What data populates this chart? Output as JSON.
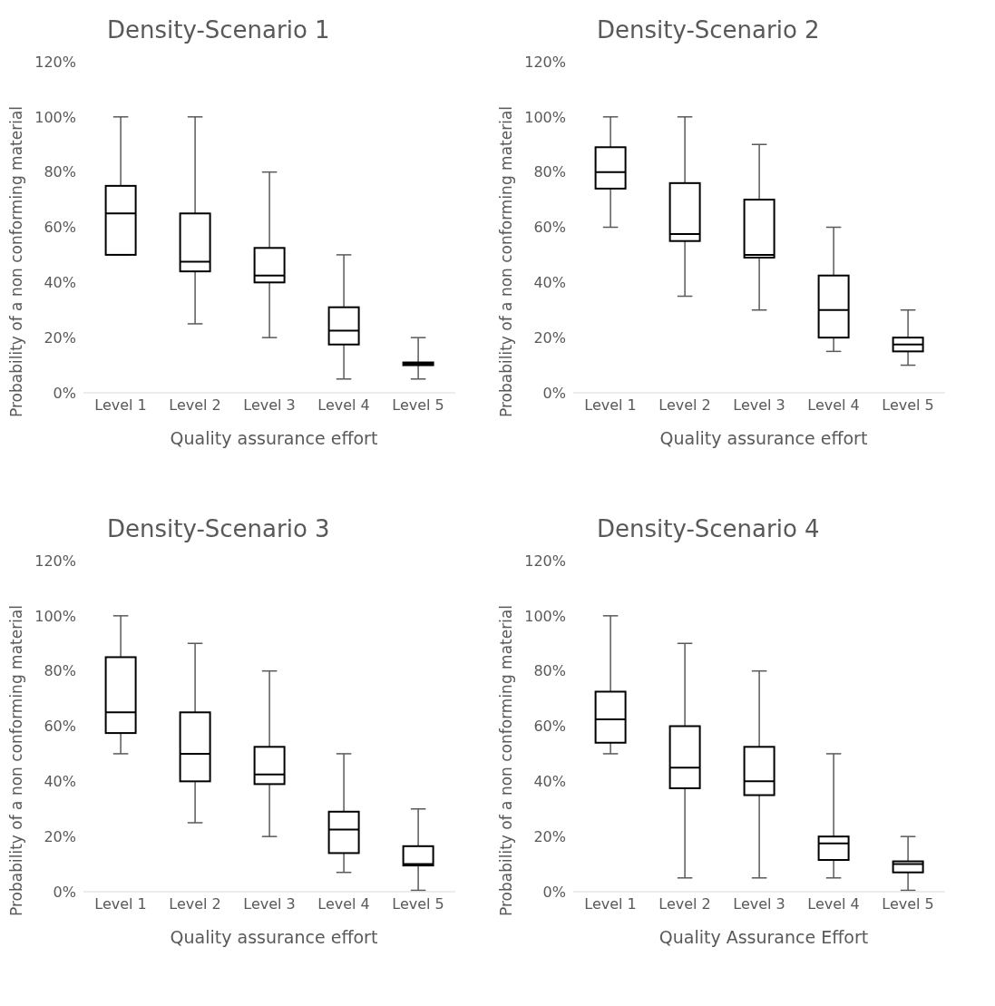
{
  "chart_data": [
    {
      "type": "box",
      "title": "Density-Scenario 1",
      "xlabel": "Quality assurance effort",
      "ylabel": "Probability of a non conforming material",
      "categories": [
        "Level 1",
        "Level 2",
        "Level 3",
        "Level 4",
        "Level 5"
      ],
      "ylim": [
        0,
        120
      ],
      "yticks": [
        {
          "value": 0,
          "label": "0%"
        },
        {
          "value": 20,
          "label": "20%"
        },
        {
          "value": 40,
          "label": "40%"
        },
        {
          "value": 60,
          "label": "60%"
        },
        {
          "value": 80,
          "label": "80%"
        },
        {
          "value": 100,
          "label": "100%"
        },
        {
          "value": 120,
          "label": "120%"
        }
      ],
      "grid": false,
      "legend": false,
      "boxes": [
        {
          "low": 50,
          "q1": 50,
          "median": 65,
          "q3": 75,
          "high": 100
        },
        {
          "low": 25,
          "q1": 44,
          "median": 47.5,
          "q3": 65,
          "high": 100
        },
        {
          "low": 20,
          "q1": 40,
          "median": 42.5,
          "q3": 52.5,
          "high": 80
        },
        {
          "low": 5,
          "q1": 17.5,
          "median": 22.5,
          "q3": 31,
          "high": 50
        },
        {
          "low": 5,
          "q1": 10,
          "median": 10.5,
          "q3": 11,
          "high": 20
        }
      ]
    },
    {
      "type": "box",
      "title": "Density-Scenario 2",
      "xlabel": "Quality assurance effort",
      "ylabel": "Probability of a non conforming material",
      "categories": [
        "Level 1",
        "Level 2",
        "Level 3",
        "Level 4",
        "Level 5"
      ],
      "ylim": [
        0,
        120
      ],
      "yticks": [
        {
          "value": 0,
          "label": "0%"
        },
        {
          "value": 20,
          "label": "20%"
        },
        {
          "value": 40,
          "label": "40%"
        },
        {
          "value": 60,
          "label": "60%"
        },
        {
          "value": 80,
          "label": "80%"
        },
        {
          "value": 100,
          "label": "100%"
        },
        {
          "value": 120,
          "label": "120%"
        }
      ],
      "grid": false,
      "legend": false,
      "boxes": [
        {
          "low": 60,
          "q1": 74,
          "median": 80,
          "q3": 89,
          "high": 100
        },
        {
          "low": 35,
          "q1": 55,
          "median": 57.5,
          "q3": 76,
          "high": 100
        },
        {
          "low": 30,
          "q1": 49,
          "median": 50,
          "q3": 70,
          "high": 90
        },
        {
          "low": 15,
          "q1": 20,
          "median": 30,
          "q3": 42.5,
          "high": 60
        },
        {
          "low": 10,
          "q1": 15,
          "median": 17.5,
          "q3": 20,
          "high": 30
        }
      ]
    },
    {
      "type": "box",
      "title": "Density-Scenario 3",
      "xlabel": "Quality assurance effort",
      "ylabel": "Probability of a non conforming material",
      "categories": [
        "Level 1",
        "Level 2",
        "Level 3",
        "Level 4",
        "Level 5"
      ],
      "ylim": [
        0,
        120
      ],
      "yticks": [
        {
          "value": 0,
          "label": "0%"
        },
        {
          "value": 20,
          "label": "20%"
        },
        {
          "value": 40,
          "label": "40%"
        },
        {
          "value": 60,
          "label": "60%"
        },
        {
          "value": 80,
          "label": "80%"
        },
        {
          "value": 100,
          "label": "100%"
        },
        {
          "value": 120,
          "label": "120%"
        }
      ],
      "grid": false,
      "legend": false,
      "boxes": [
        {
          "low": 50,
          "q1": 57.5,
          "median": 65,
          "q3": 85,
          "high": 100
        },
        {
          "low": 25,
          "q1": 40,
          "median": 50,
          "q3": 65,
          "high": 90
        },
        {
          "low": 20,
          "q1": 39,
          "median": 42.5,
          "q3": 52.5,
          "high": 80
        },
        {
          "low": 7,
          "q1": 14,
          "median": 22.5,
          "q3": 29,
          "high": 50
        },
        {
          "low": 0.5,
          "q1": 9.5,
          "median": 10,
          "q3": 16.5,
          "high": 30
        }
      ]
    },
    {
      "type": "box",
      "title": "Density-Scenario 4",
      "xlabel": "Quality Assurance Effort",
      "ylabel": "Probability of a non conforming material",
      "categories": [
        "Level 1",
        "Level 2",
        "Level 3",
        "Level 4",
        "Level 5"
      ],
      "ylim": [
        0,
        120
      ],
      "yticks": [
        {
          "value": 0,
          "label": "0%"
        },
        {
          "value": 20,
          "label": "20%"
        },
        {
          "value": 40,
          "label": "40%"
        },
        {
          "value": 60,
          "label": "60%"
        },
        {
          "value": 80,
          "label": "80%"
        },
        {
          "value": 100,
          "label": "100%"
        },
        {
          "value": 120,
          "label": "120%"
        }
      ],
      "grid": false,
      "legend": false,
      "boxes": [
        {
          "low": 50,
          "q1": 54,
          "median": 62.5,
          "q3": 72.5,
          "high": 100
        },
        {
          "low": 5,
          "q1": 37.5,
          "median": 45,
          "q3": 60,
          "high": 90
        },
        {
          "low": 5,
          "q1": 35,
          "median": 40,
          "q3": 52.5,
          "high": 80
        },
        {
          "low": 5,
          "q1": 11.5,
          "median": 17.5,
          "q3": 20,
          "high": 50
        },
        {
          "low": 0.5,
          "q1": 7,
          "median": 10,
          "q3": 11,
          "high": 20
        }
      ]
    }
  ]
}
